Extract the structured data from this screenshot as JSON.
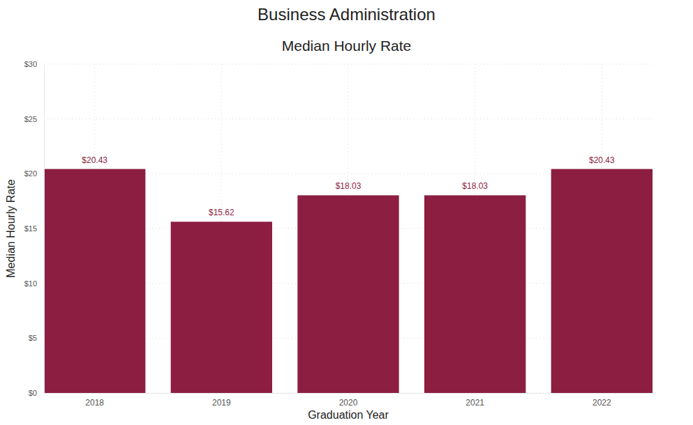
{
  "chart_data": {
    "type": "bar",
    "title": "Business Administration",
    "subtitle": "Median Hourly Rate",
    "x_label": "Graduation Year",
    "y_label": "Median Hourly Rate",
    "categories": [
      "2018",
      "2019",
      "2020",
      "2021",
      "2022"
    ],
    "values": [
      20.43,
      15.62,
      18.03,
      18.03,
      20.43
    ],
    "value_labels": [
      "$20.43",
      "$15.62",
      "$18.03",
      "$18.03",
      "$20.43"
    ],
    "color": "#8b1e41",
    "ylim": [
      0,
      30
    ],
    "yticks": [
      {
        "value": 0,
        "label": "$0"
      },
      {
        "value": 5,
        "label": "$5"
      },
      {
        "value": 10,
        "label": "$10"
      },
      {
        "value": 15,
        "label": "$15"
      },
      {
        "value": 20,
        "label": "$20"
      },
      {
        "value": 25,
        "label": "$25"
      },
      {
        "value": 30,
        "label": "$30"
      }
    ],
    "grid": true,
    "data_labels": true
  }
}
